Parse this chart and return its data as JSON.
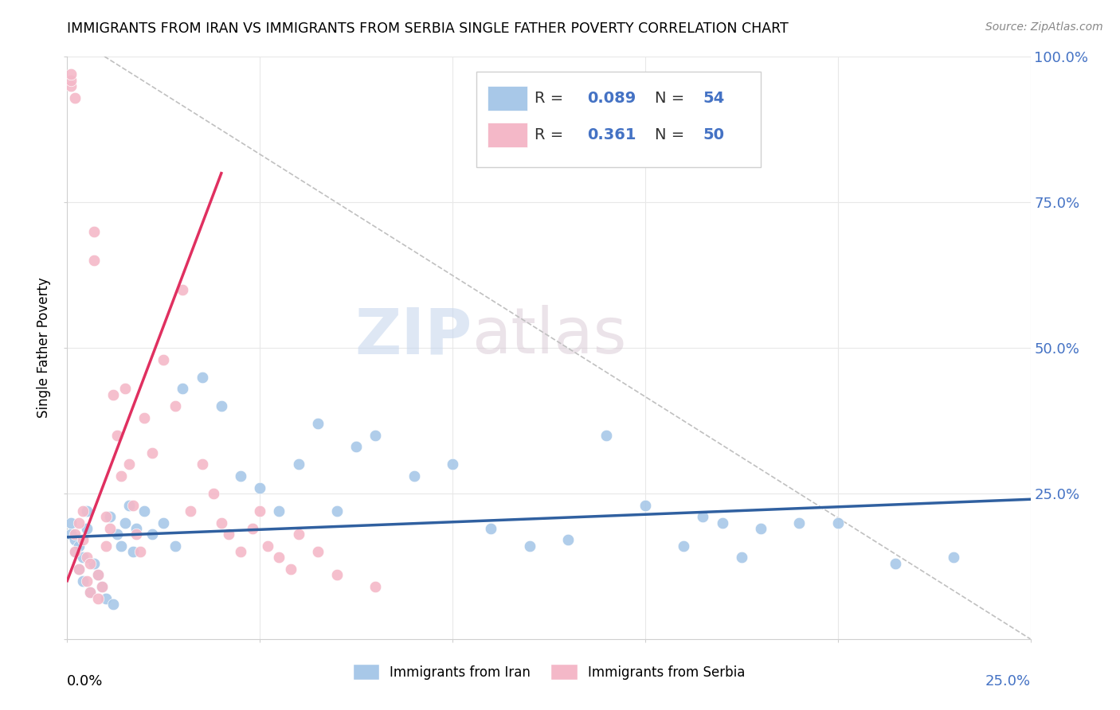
{
  "title": "IMMIGRANTS FROM IRAN VS IMMIGRANTS FROM SERBIA SINGLE FATHER POVERTY CORRELATION CHART",
  "source": "Source: ZipAtlas.com",
  "ylabel": "Single Father Poverty",
  "xlim": [
    0,
    0.25
  ],
  "ylim": [
    0,
    1.0
  ],
  "iran_R": 0.089,
  "iran_N": 54,
  "serbia_R": 0.361,
  "serbia_N": 50,
  "iran_color": "#a8c8e8",
  "serbia_color": "#f4b8c8",
  "iran_line_color": "#3060a0",
  "serbia_line_color": "#e03060",
  "watermark_zip": "ZIP",
  "watermark_atlas": "atlas",
  "iran_x": [
    0.001,
    0.001,
    0.002,
    0.002,
    0.003,
    0.003,
    0.004,
    0.004,
    0.005,
    0.005,
    0.006,
    0.007,
    0.008,
    0.009,
    0.01,
    0.011,
    0.012,
    0.013,
    0.014,
    0.015,
    0.016,
    0.017,
    0.018,
    0.02,
    0.022,
    0.025,
    0.028,
    0.03,
    0.035,
    0.04,
    0.045,
    0.05,
    0.055,
    0.06,
    0.065,
    0.07,
    0.075,
    0.08,
    0.09,
    0.1,
    0.11,
    0.12,
    0.13,
    0.14,
    0.15,
    0.16,
    0.165,
    0.17,
    0.175,
    0.18,
    0.19,
    0.2,
    0.215,
    0.23
  ],
  "iran_y": [
    0.18,
    0.2,
    0.15,
    0.17,
    0.12,
    0.16,
    0.1,
    0.14,
    0.22,
    0.19,
    0.08,
    0.13,
    0.11,
    0.09,
    0.07,
    0.21,
    0.06,
    0.18,
    0.16,
    0.2,
    0.23,
    0.15,
    0.19,
    0.22,
    0.18,
    0.2,
    0.16,
    0.43,
    0.45,
    0.4,
    0.28,
    0.26,
    0.22,
    0.3,
    0.37,
    0.22,
    0.33,
    0.35,
    0.28,
    0.3,
    0.19,
    0.16,
    0.17,
    0.35,
    0.23,
    0.16,
    0.21,
    0.2,
    0.14,
    0.19,
    0.2,
    0.2,
    0.13,
    0.14
  ],
  "serbia_x": [
    0.001,
    0.001,
    0.001,
    0.002,
    0.002,
    0.002,
    0.003,
    0.003,
    0.004,
    0.004,
    0.005,
    0.005,
    0.006,
    0.006,
    0.007,
    0.007,
    0.008,
    0.008,
    0.009,
    0.01,
    0.01,
    0.011,
    0.012,
    0.013,
    0.014,
    0.015,
    0.016,
    0.017,
    0.018,
    0.019,
    0.02,
    0.022,
    0.025,
    0.028,
    0.03,
    0.032,
    0.035,
    0.038,
    0.04,
    0.042,
    0.045,
    0.048,
    0.05,
    0.052,
    0.055,
    0.058,
    0.06,
    0.065,
    0.07,
    0.08
  ],
  "serbia_y": [
    0.95,
    0.96,
    0.97,
    0.93,
    0.15,
    0.18,
    0.12,
    0.2,
    0.17,
    0.22,
    0.1,
    0.14,
    0.08,
    0.13,
    0.65,
    0.7,
    0.07,
    0.11,
    0.09,
    0.16,
    0.21,
    0.19,
    0.42,
    0.35,
    0.28,
    0.43,
    0.3,
    0.23,
    0.18,
    0.15,
    0.38,
    0.32,
    0.48,
    0.4,
    0.6,
    0.22,
    0.3,
    0.25,
    0.2,
    0.18,
    0.15,
    0.19,
    0.22,
    0.16,
    0.14,
    0.12,
    0.18,
    0.15,
    0.11,
    0.09
  ]
}
